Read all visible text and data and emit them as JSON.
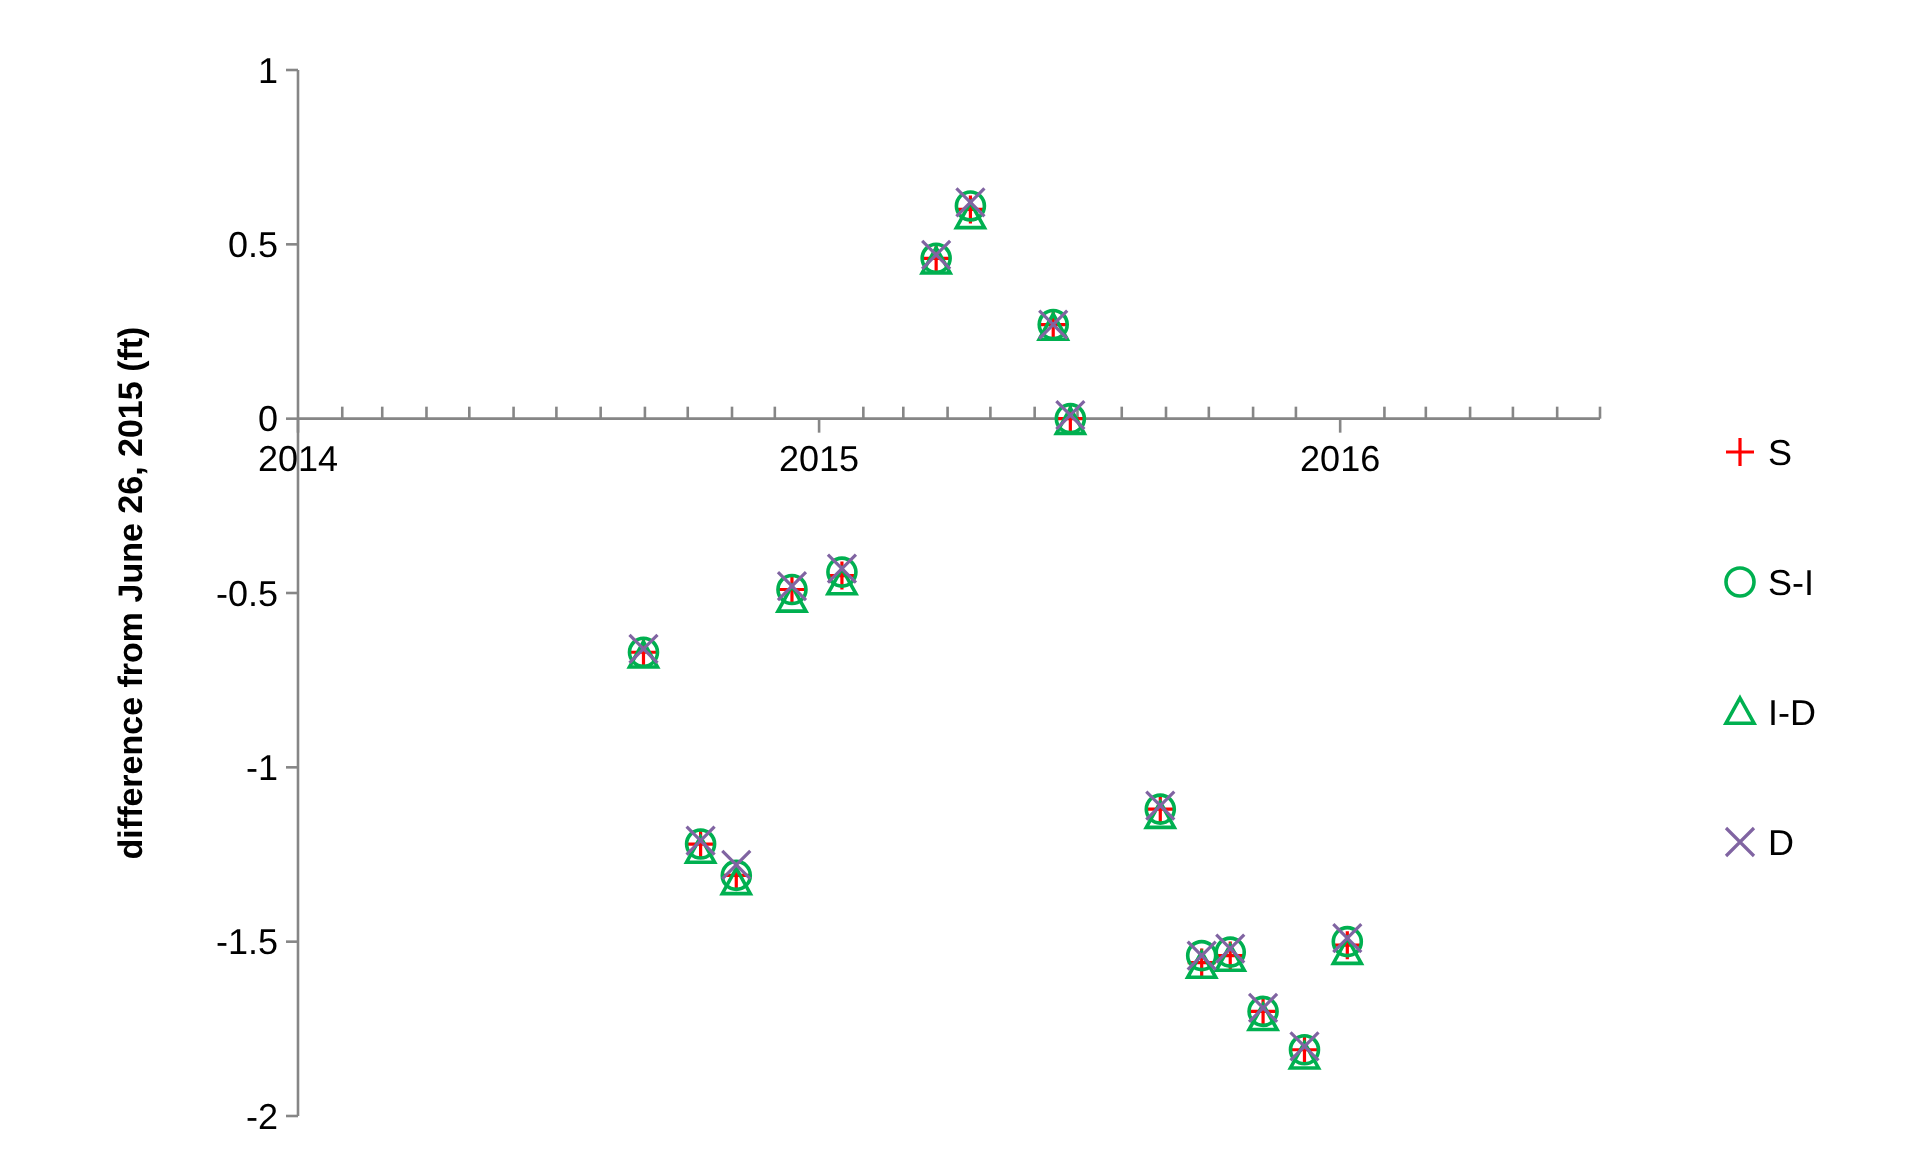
{
  "chart_data": {
    "type": "scatter",
    "ylabel": "difference from June 26, 2015 (ft)",
    "x": [
      "2014-08-31",
      "2014-10-10",
      "2014-11-04",
      "2014-12-13",
      "2015-01-17",
      "2015-03-24",
      "2015-04-17",
      "2015-06-14",
      "2015-06-26",
      "2015-08-28",
      "2015-09-26",
      "2015-10-16",
      "2015-11-08",
      "2015-12-07",
      "2016-01-06"
    ],
    "series": [
      {
        "name": "S",
        "color": "#ff0000",
        "marker": "cross",
        "values": [
          -0.67,
          -1.22,
          -1.31,
          -0.49,
          -0.45,
          0.46,
          0.6,
          0.27,
          0,
          -1.12,
          -1.56,
          -1.54,
          -1.7,
          -1.81,
          -1.51
        ]
      },
      {
        "name": "S-I",
        "color": "#00b050",
        "marker": "circle",
        "values": [
          -0.67,
          -1.22,
          -1.31,
          -0.49,
          -0.44,
          0.46,
          0.61,
          0.27,
          0,
          -1.12,
          -1.54,
          -1.53,
          -1.7,
          -1.81,
          -1.5
        ]
      },
      {
        "name": "I-D",
        "color": "#00b050",
        "marker": "triangle",
        "values": [
          -0.68,
          -1.24,
          -1.33,
          -0.52,
          -0.47,
          0.45,
          0.58,
          0.26,
          -0.01,
          -1.14,
          -1.57,
          -1.55,
          -1.72,
          -1.83,
          -1.53
        ]
      },
      {
        "name": "D",
        "color": "#8064a2",
        "marker": "x",
        "values": [
          -0.66,
          -1.21,
          -1.28,
          -0.48,
          -0.43,
          0.47,
          0.62,
          0.27,
          0.01,
          -1.11,
          -1.54,
          -1.52,
          -1.69,
          -1.8,
          -1.49
        ]
      }
    ],
    "xlim": [
      "2014-01-01",
      "2016-07-01"
    ],
    "xticks": [
      {
        "value": "2014-01-01",
        "label": "2014"
      },
      {
        "value": "2014-02-01",
        "label": null
      },
      {
        "value": "2014-03-01",
        "label": null
      },
      {
        "value": "2014-04-01",
        "label": null
      },
      {
        "value": "2014-05-01",
        "label": null
      },
      {
        "value": "2014-06-01",
        "label": null
      },
      {
        "value": "2014-07-01",
        "label": null
      },
      {
        "value": "2014-08-01",
        "label": null
      },
      {
        "value": "2014-09-01",
        "label": null
      },
      {
        "value": "2014-10-01",
        "label": null
      },
      {
        "value": "2014-11-01",
        "label": null
      },
      {
        "value": "2014-12-01",
        "label": null
      },
      {
        "value": "2015-01-01",
        "label": "2015"
      },
      {
        "value": "2015-02-01",
        "label": null
      },
      {
        "value": "2015-03-01",
        "label": null
      },
      {
        "value": "2015-04-01",
        "label": null
      },
      {
        "value": "2015-05-01",
        "label": null
      },
      {
        "value": "2015-06-01",
        "label": null
      },
      {
        "value": "2015-07-01",
        "label": null
      },
      {
        "value": "2015-08-01",
        "label": null
      },
      {
        "value": "2015-09-01",
        "label": null
      },
      {
        "value": "2015-10-01",
        "label": null
      },
      {
        "value": "2015-11-01",
        "label": null
      },
      {
        "value": "2015-12-01",
        "label": null
      },
      {
        "value": "2016-01-01",
        "label": "2016"
      },
      {
        "value": "2016-02-01",
        "label": null
      },
      {
        "value": "2016-03-01",
        "label": null
      },
      {
        "value": "2016-04-01",
        "label": null
      },
      {
        "value": "2016-05-01",
        "label": null
      },
      {
        "value": "2016-06-01",
        "label": null
      },
      {
        "value": "2016-07-01",
        "label": null
      }
    ],
    "ylim": [
      -2,
      1
    ],
    "yticks": [
      -2,
      -1.5,
      -1,
      -0.5,
      0,
      0.5,
      1
    ],
    "grid": false,
    "legend": "right"
  }
}
